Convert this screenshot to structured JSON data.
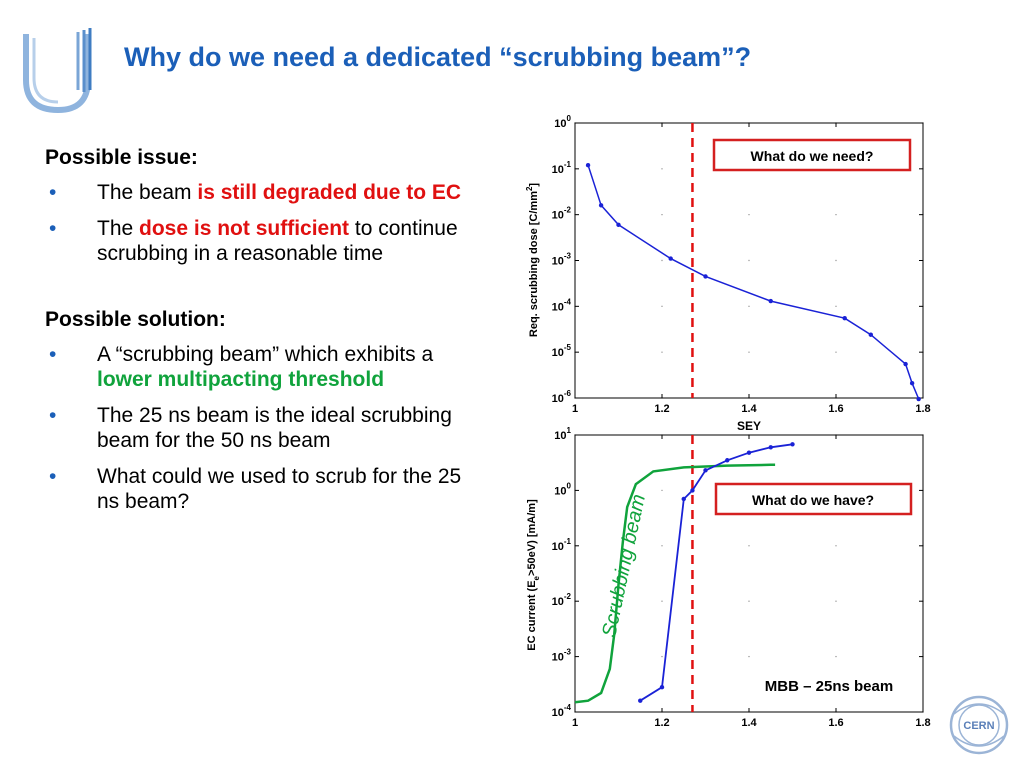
{
  "slide": {
    "title": "Why do we need a dedicated “scrubbing beam”?",
    "issue": {
      "heading": "Possible issue:",
      "bullets": [
        {
          "pre": "The beam ",
          "hl": "is still degraded due to EC",
          "post": ""
        },
        {
          "pre": "The ",
          "hl": "dose is not sufficient",
          "post": " to continue scrubbing in a reasonable time"
        }
      ]
    },
    "solution": {
      "heading": "Possible solution:",
      "bullets": [
        {
          "pre": "A “scrubbing beam” which exhibits a ",
          "hl": "lower multipacting threshold",
          "post": ""
        },
        {
          "pre": "The 25 ns beam is the ideal scrubbing beam for the 50 ns beam",
          "hl": "",
          "post": ""
        },
        {
          "pre": "What could we used to scrub for the 25 ns beam?",
          "hl": "",
          "post": ""
        }
      ]
    },
    "logo_text": "CERN",
    "colors": {
      "title": "#1b5fb8",
      "red": "#e01010",
      "green": "#10a33c",
      "series": "#1a22d6",
      "box": "#d42020"
    }
  },
  "chart_data": [
    {
      "type": "line",
      "ylabel_main": "Req. scrubbing dose [C/mm",
      "ylabel_sup": "2",
      "ylabel_end": "]",
      "xlabel": "SEY",
      "xlim": [
        1,
        1.8
      ],
      "ylim": [
        1e-06,
        1
      ],
      "yscale": "log",
      "x_ticks": [
        "1",
        "1.2",
        "1.4",
        "1.6",
        "1.8"
      ],
      "y_ticks": [
        {
          "base": "10",
          "exp": "0"
        },
        {
          "base": "10",
          "exp": "-1"
        },
        {
          "base": "10",
          "exp": "-2"
        },
        {
          "base": "10",
          "exp": "-3"
        },
        {
          "base": "10",
          "exp": "-4"
        },
        {
          "base": "10",
          "exp": "-5"
        },
        {
          "base": "10",
          "exp": "-6"
        }
      ],
      "series": [
        {
          "x": [
            1.03,
            1.06,
            1.1,
            1.22,
            1.3,
            1.45,
            1.62,
            1.68,
            1.76,
            1.775,
            1.79
          ],
          "y": [
            0.12,
            0.016,
            0.006,
            0.0011,
            0.00045,
            0.00013,
            5.5e-05,
            2.4e-05,
            5.5e-06,
            2.1e-06,
            9.5e-07
          ]
        }
      ],
      "threshold_x": 1.27,
      "annotation": "What do we need?"
    },
    {
      "type": "line",
      "ylabel_main": "EC current (E",
      "ylabel_sub": "e",
      "ylabel_end": ">50eV) [mA/m]",
      "xlim": [
        1,
        1.8
      ],
      "ylim": [
        0.0001,
        10
      ],
      "yscale": "log",
      "x_ticks": [
        "1",
        "1.2",
        "1.4",
        "1.6",
        "1.8"
      ],
      "y_ticks": [
        {
          "base": "10",
          "exp": "1"
        },
        {
          "base": "10",
          "exp": "0"
        },
        {
          "base": "10",
          "exp": "-1"
        },
        {
          "base": "10",
          "exp": "-2"
        },
        {
          "base": "10",
          "exp": "-3"
        },
        {
          "base": "10",
          "exp": "-4"
        }
      ],
      "series": [
        {
          "x": [
            1.15,
            1.2,
            1.25,
            1.27,
            1.3,
            1.35,
            1.4,
            1.45,
            1.5
          ],
          "y": [
            0.00016,
            0.00028,
            0.7,
            1.0,
            2.3,
            3.5,
            4.8,
            6.0,
            6.8
          ]
        }
      ],
      "green_curve": {
        "x": [
          1.0,
          1.03,
          1.06,
          1.08,
          1.09,
          1.1,
          1.11,
          1.12,
          1.14,
          1.18,
          1.25,
          1.35,
          1.45,
          1.46
        ],
        "y": [
          0.00015,
          0.00016,
          0.00022,
          0.0006,
          0.0025,
          0.02,
          0.12,
          0.5,
          1.3,
          2.2,
          2.6,
          2.8,
          2.9,
          2.9
        ]
      },
      "green_label": "Scrubbing beam",
      "threshold_x": 1.27,
      "annotation": "What do we have?",
      "caption": "MBB – 25ns beam"
    }
  ]
}
